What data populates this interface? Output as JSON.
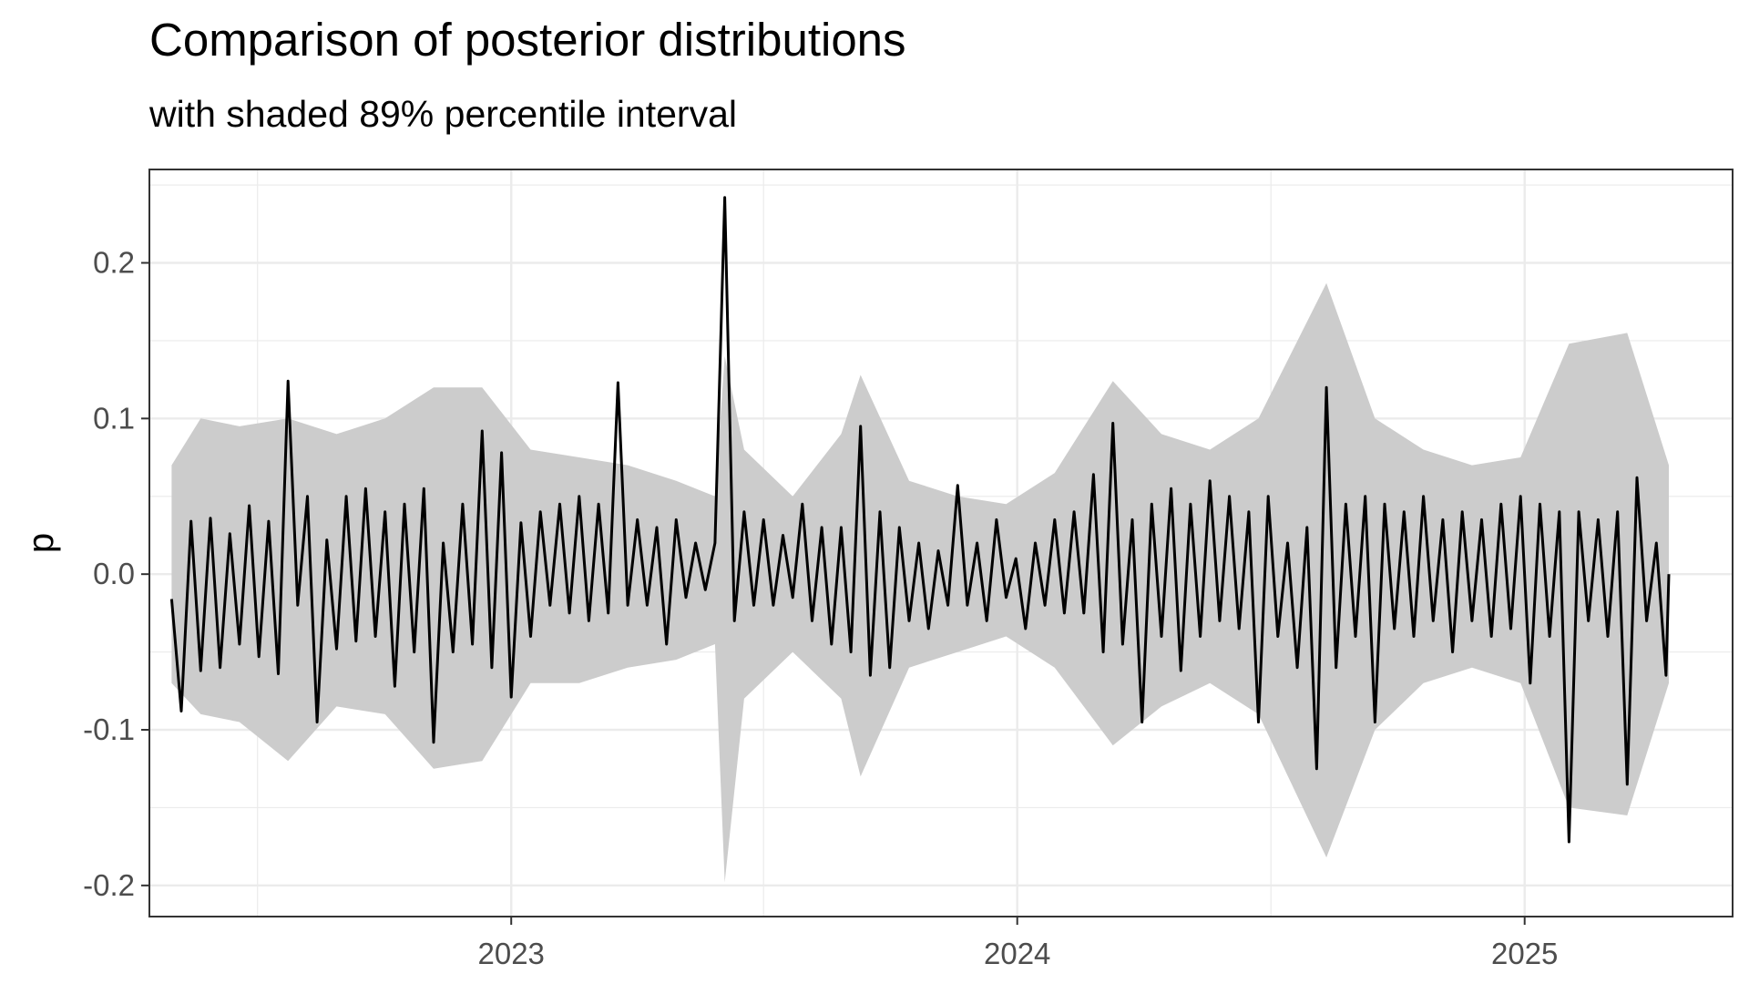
{
  "chart_data": {
    "type": "line",
    "title": "Comparison of posterior distributions",
    "subtitle": "with shaded 89% percentile interval",
    "xlabel": "",
    "ylabel": "p",
    "x_range": [
      "2022-04-15",
      "2025-05-31"
    ],
    "ylim": [
      -0.22,
      0.26
    ],
    "x_ticks": [
      "2023",
      "2024",
      "2025"
    ],
    "y_ticks": [
      -0.2,
      -0.1,
      0.0,
      0.1,
      0.2
    ],
    "y_tick_labels": [
      "-0.2",
      "-0.1",
      "0.0",
      "0.1",
      "0.2"
    ],
    "grid": true,
    "legend": "none",
    "series": [
      {
        "type": "line",
        "color": "#000000",
        "points": [
          [
            "2022-05-01",
            -0.016
          ],
          [
            "2022-05-08",
            -0.088
          ],
          [
            "2022-05-15",
            0.034
          ],
          [
            "2022-05-22",
            -0.062
          ],
          [
            "2022-05-29",
            0.036
          ],
          [
            "2022-06-05",
            -0.06
          ],
          [
            "2022-06-12",
            0.026
          ],
          [
            "2022-06-19",
            -0.045
          ],
          [
            "2022-06-26",
            0.044
          ],
          [
            "2022-07-03",
            -0.053
          ],
          [
            "2022-07-10",
            0.034
          ],
          [
            "2022-07-17",
            -0.064
          ],
          [
            "2022-07-24",
            0.124
          ],
          [
            "2022-07-31",
            -0.02
          ],
          [
            "2022-08-07",
            0.05
          ],
          [
            "2022-08-14",
            -0.095
          ],
          [
            "2022-08-21",
            0.022
          ],
          [
            "2022-08-28",
            -0.048
          ],
          [
            "2022-09-04",
            0.05
          ],
          [
            "2022-09-11",
            -0.043
          ],
          [
            "2022-09-18",
            0.055
          ],
          [
            "2022-09-25",
            -0.04
          ],
          [
            "2022-10-02",
            0.04
          ],
          [
            "2022-10-09",
            -0.072
          ],
          [
            "2022-10-16",
            0.045
          ],
          [
            "2022-10-23",
            -0.05
          ],
          [
            "2022-10-30",
            0.055
          ],
          [
            "2022-11-06",
            -0.108
          ],
          [
            "2022-11-13",
            0.02
          ],
          [
            "2022-11-20",
            -0.05
          ],
          [
            "2022-11-27",
            0.045
          ],
          [
            "2022-12-04",
            -0.045
          ],
          [
            "2022-12-11",
            0.092
          ],
          [
            "2022-12-18",
            -0.06
          ],
          [
            "2022-12-25",
            0.078
          ],
          [
            "2023-01-01",
            -0.079
          ],
          [
            "2023-01-08",
            0.033
          ],
          [
            "2023-01-15",
            -0.04
          ],
          [
            "2023-01-22",
            0.04
          ],
          [
            "2023-01-29",
            -0.02
          ],
          [
            "2023-02-05",
            0.045
          ],
          [
            "2023-02-12",
            -0.025
          ],
          [
            "2023-02-19",
            0.05
          ],
          [
            "2023-02-26",
            -0.03
          ],
          [
            "2023-03-05",
            0.045
          ],
          [
            "2023-03-12",
            -0.025
          ],
          [
            "2023-03-19",
            0.123
          ],
          [
            "2023-03-26",
            -0.02
          ],
          [
            "2023-04-02",
            0.035
          ],
          [
            "2023-04-09",
            -0.02
          ],
          [
            "2023-04-16",
            0.03
          ],
          [
            "2023-04-23",
            -0.045
          ],
          [
            "2023-04-30",
            0.035
          ],
          [
            "2023-05-07",
            -0.015
          ],
          [
            "2023-05-14",
            0.02
          ],
          [
            "2023-05-21",
            -0.01
          ],
          [
            "2023-05-28",
            0.02
          ],
          [
            "2023-06-04",
            0.242
          ],
          [
            "2023-06-11",
            -0.03
          ],
          [
            "2023-06-18",
            0.04
          ],
          [
            "2023-06-25",
            -0.02
          ],
          [
            "2023-07-02",
            0.035
          ],
          [
            "2023-07-09",
            -0.02
          ],
          [
            "2023-07-16",
            0.025
          ],
          [
            "2023-07-23",
            -0.015
          ],
          [
            "2023-07-30",
            0.045
          ],
          [
            "2023-08-06",
            -0.03
          ],
          [
            "2023-08-13",
            0.03
          ],
          [
            "2023-08-20",
            -0.045
          ],
          [
            "2023-08-27",
            0.03
          ],
          [
            "2023-09-03",
            -0.05
          ],
          [
            "2023-09-10",
            0.095
          ],
          [
            "2023-09-17",
            -0.065
          ],
          [
            "2023-09-24",
            0.04
          ],
          [
            "2023-10-01",
            -0.06
          ],
          [
            "2023-10-08",
            0.03
          ],
          [
            "2023-10-15",
            -0.03
          ],
          [
            "2023-10-22",
            0.02
          ],
          [
            "2023-10-29",
            -0.035
          ],
          [
            "2023-11-05",
            0.015
          ],
          [
            "2023-11-12",
            -0.02
          ],
          [
            "2023-11-19",
            0.057
          ],
          [
            "2023-11-26",
            -0.02
          ],
          [
            "2023-12-03",
            0.02
          ],
          [
            "2023-12-10",
            -0.03
          ],
          [
            "2023-12-17",
            0.035
          ],
          [
            "2023-12-24",
            -0.015
          ],
          [
            "2023-12-31",
            0.01
          ],
          [
            "2024-01-07",
            -0.035
          ],
          [
            "2024-01-14",
            0.02
          ],
          [
            "2024-01-21",
            -0.02
          ],
          [
            "2024-01-28",
            0.035
          ],
          [
            "2024-02-04",
            -0.025
          ],
          [
            "2024-02-11",
            0.04
          ],
          [
            "2024-02-18",
            -0.025
          ],
          [
            "2024-02-25",
            0.064
          ],
          [
            "2024-03-03",
            -0.05
          ],
          [
            "2024-03-10",
            0.097
          ],
          [
            "2024-03-17",
            -0.045
          ],
          [
            "2024-03-24",
            0.035
          ],
          [
            "2024-03-31",
            -0.095
          ],
          [
            "2024-04-07",
            0.045
          ],
          [
            "2024-04-14",
            -0.04
          ],
          [
            "2024-04-21",
            0.055
          ],
          [
            "2024-04-28",
            -0.062
          ],
          [
            "2024-05-05",
            0.045
          ],
          [
            "2024-05-12",
            -0.04
          ],
          [
            "2024-05-19",
            0.06
          ],
          [
            "2024-05-26",
            -0.03
          ],
          [
            "2024-06-02",
            0.05
          ],
          [
            "2024-06-09",
            -0.035
          ],
          [
            "2024-06-16",
            0.04
          ],
          [
            "2024-06-23",
            -0.095
          ],
          [
            "2024-06-30",
            0.05
          ],
          [
            "2024-07-07",
            -0.04
          ],
          [
            "2024-07-14",
            0.02
          ],
          [
            "2024-07-21",
            -0.06
          ],
          [
            "2024-07-28",
            0.03
          ],
          [
            "2024-08-04",
            -0.125
          ],
          [
            "2024-08-11",
            0.12
          ],
          [
            "2024-08-18",
            -0.06
          ],
          [
            "2024-08-25",
            0.045
          ],
          [
            "2024-09-01",
            -0.04
          ],
          [
            "2024-09-08",
            0.05
          ],
          [
            "2024-09-15",
            -0.095
          ],
          [
            "2024-09-22",
            0.045
          ],
          [
            "2024-09-29",
            -0.035
          ],
          [
            "2024-10-06",
            0.04
          ],
          [
            "2024-10-13",
            -0.04
          ],
          [
            "2024-10-20",
            0.05
          ],
          [
            "2024-10-27",
            -0.03
          ],
          [
            "2024-11-03",
            0.035
          ],
          [
            "2024-11-10",
            -0.05
          ],
          [
            "2024-11-17",
            0.04
          ],
          [
            "2024-11-24",
            -0.03
          ],
          [
            "2024-12-01",
            0.035
          ],
          [
            "2024-12-08",
            -0.04
          ],
          [
            "2024-12-15",
            0.045
          ],
          [
            "2024-12-22",
            -0.035
          ],
          [
            "2024-12-29",
            0.05
          ],
          [
            "2025-01-05",
            -0.07
          ],
          [
            "2025-01-12",
            0.045
          ],
          [
            "2025-01-19",
            -0.04
          ],
          [
            "2025-01-26",
            0.04
          ],
          [
            "2025-02-02",
            -0.172
          ],
          [
            "2025-02-09",
            0.04
          ],
          [
            "2025-02-16",
            -0.03
          ],
          [
            "2025-02-23",
            0.035
          ],
          [
            "2025-03-02",
            -0.04
          ],
          [
            "2025-03-09",
            0.04
          ],
          [
            "2025-03-16",
            -0.135
          ],
          [
            "2025-03-23",
            0.062
          ],
          [
            "2025-03-30",
            -0.03
          ],
          [
            "2025-04-06",
            0.02
          ],
          [
            "2025-04-13",
            -0.065
          ],
          [
            "2025-04-15",
            0.0
          ]
        ]
      },
      {
        "type": "band",
        "color": "#cccccc",
        "points": [
          [
            "2022-05-01",
            -0.07,
            0.07
          ],
          [
            "2022-05-22",
            -0.09,
            0.1
          ],
          [
            "2022-06-19",
            -0.095,
            0.095
          ],
          [
            "2022-07-24",
            -0.12,
            0.1
          ],
          [
            "2022-08-28",
            -0.085,
            0.09
          ],
          [
            "2022-10-02",
            -0.09,
            0.1
          ],
          [
            "2022-11-06",
            -0.125,
            0.12
          ],
          [
            "2022-12-11",
            -0.12,
            0.12
          ],
          [
            "2023-01-15",
            -0.07,
            0.08
          ],
          [
            "2023-02-19",
            -0.07,
            0.075
          ],
          [
            "2023-03-26",
            -0.06,
            0.07
          ],
          [
            "2023-04-30",
            -0.055,
            0.06
          ],
          [
            "2023-05-28",
            -0.045,
            0.05
          ],
          [
            "2023-06-04",
            -0.198,
            0.14
          ],
          [
            "2023-06-18",
            -0.08,
            0.08
          ],
          [
            "2023-07-23",
            -0.05,
            0.05
          ],
          [
            "2023-08-27",
            -0.08,
            0.09
          ],
          [
            "2023-09-10",
            -0.13,
            0.128
          ],
          [
            "2023-10-15",
            -0.06,
            0.06
          ],
          [
            "2023-11-19",
            -0.05,
            0.05
          ],
          [
            "2023-12-24",
            -0.04,
            0.045
          ],
          [
            "2024-01-28",
            -0.06,
            0.065
          ],
          [
            "2024-03-10",
            -0.11,
            0.124
          ],
          [
            "2024-04-14",
            -0.085,
            0.09
          ],
          [
            "2024-05-19",
            -0.07,
            0.08
          ],
          [
            "2024-06-23",
            -0.09,
            0.1
          ],
          [
            "2024-08-11",
            -0.182,
            0.187
          ],
          [
            "2024-09-15",
            -0.1,
            0.1
          ],
          [
            "2024-10-20",
            -0.07,
            0.08
          ],
          [
            "2024-11-24",
            -0.06,
            0.07
          ],
          [
            "2024-12-29",
            -0.07,
            0.075
          ],
          [
            "2025-02-02",
            -0.15,
            0.148
          ],
          [
            "2025-03-16",
            -0.155,
            0.155
          ],
          [
            "2025-04-15",
            -0.07,
            0.07
          ]
        ]
      }
    ]
  }
}
